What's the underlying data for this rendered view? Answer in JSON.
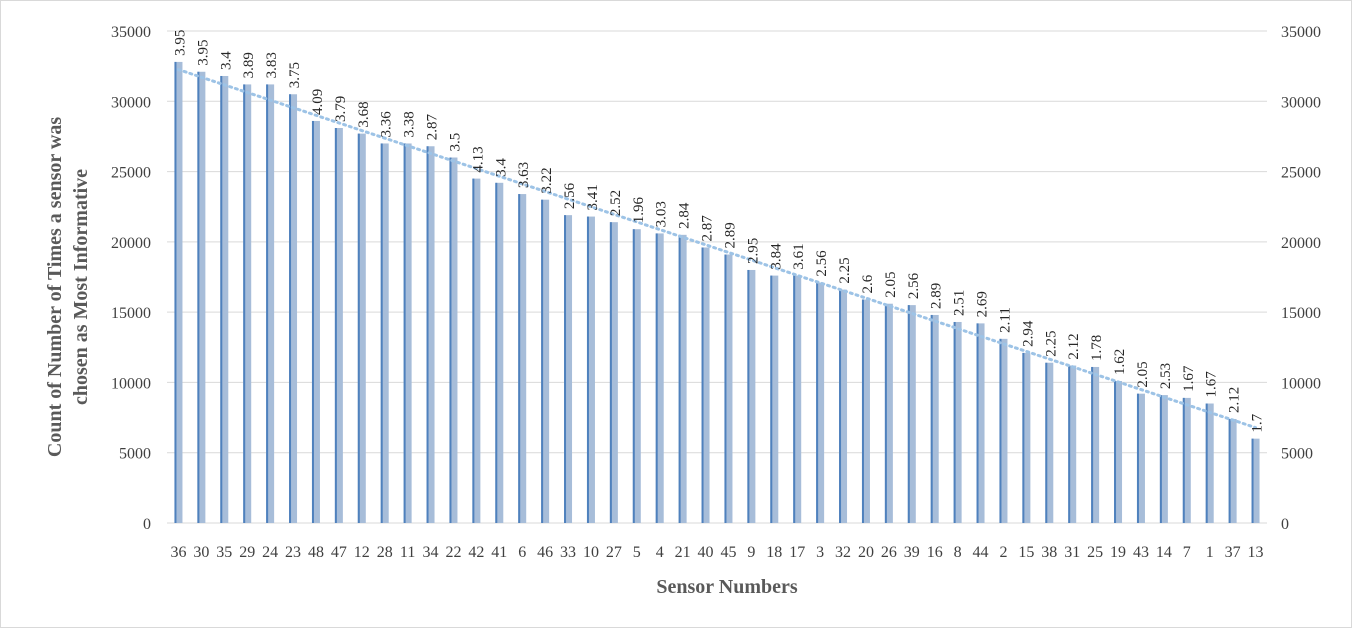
{
  "chart_data": {
    "type": "bar",
    "xlabel": "Sensor Numbers",
    "ylabel_lines": [
      "Count of Number of Times a sensor was",
      "chosen as Most Informative"
    ],
    "ylim": [
      0,
      35000
    ],
    "yticks": [
      0,
      5000,
      10000,
      15000,
      20000,
      25000,
      30000,
      35000
    ],
    "secondary_yticks": [
      0,
      5000,
      10000,
      15000,
      20000,
      25000,
      30000,
      35000
    ],
    "categories": [
      "36",
      "30",
      "35",
      "29",
      "24",
      "23",
      "48",
      "47",
      "12",
      "28",
      "11",
      "34",
      "22",
      "42",
      "41",
      "6",
      "46",
      "33",
      "10",
      "27",
      "5",
      "4",
      "21",
      "40",
      "45",
      "9",
      "18",
      "17",
      "3",
      "32",
      "20",
      "26",
      "39",
      "16",
      "8",
      "44",
      "2",
      "15",
      "38",
      "31",
      "25",
      "19",
      "43",
      "14",
      "7",
      "1",
      "37",
      "13"
    ],
    "values": [
      32800,
      32100,
      31800,
      31200,
      31200,
      30500,
      28600,
      28100,
      27700,
      27000,
      27000,
      26800,
      26000,
      24500,
      24200,
      23400,
      23000,
      21900,
      21800,
      21400,
      20900,
      20600,
      20500,
      19600,
      19100,
      18000,
      17600,
      17600,
      17100,
      16600,
      15900,
      15600,
      15500,
      14800,
      14300,
      14200,
      13100,
      12100,
      11400,
      11200,
      11100,
      10100,
      9200,
      9100,
      8900,
      8500,
      7400,
      6000
    ],
    "data_labels": [
      "3.95",
      "3.95",
      "3.4",
      "3.89",
      "3.83",
      "3.75",
      "4.09",
      "3.79",
      "3.68",
      "3.36",
      "3.38",
      "2.87",
      "3.5",
      "4.13",
      "3.4",
      "3.63",
      "3.22",
      "2.56",
      "3.41",
      "2.52",
      "1.96",
      "3.03",
      "2.84",
      "2.87",
      "2.89",
      "2.95",
      "3.84",
      "3.61",
      "2.56",
      "2.25",
      "2.6",
      "2.05",
      "2.56",
      "2.89",
      "2.51",
      "2.69",
      "2.11",
      "2.94",
      "2.25",
      "2.12",
      "1.78",
      "1.62",
      "2.05",
      "2.53",
      "1.67",
      "1.67",
      "2.12",
      "1.7"
    ],
    "trendline": {
      "type": "linear",
      "style": "dotted",
      "color": "#9dc3e6"
    },
    "colors": {
      "bar_fill": "#a7bdd9",
      "bar_edge": "#4f81bd",
      "grid": "#d9d9d9",
      "text": "#404040",
      "title": "#595959"
    },
    "grid": true,
    "legend": "none"
  }
}
